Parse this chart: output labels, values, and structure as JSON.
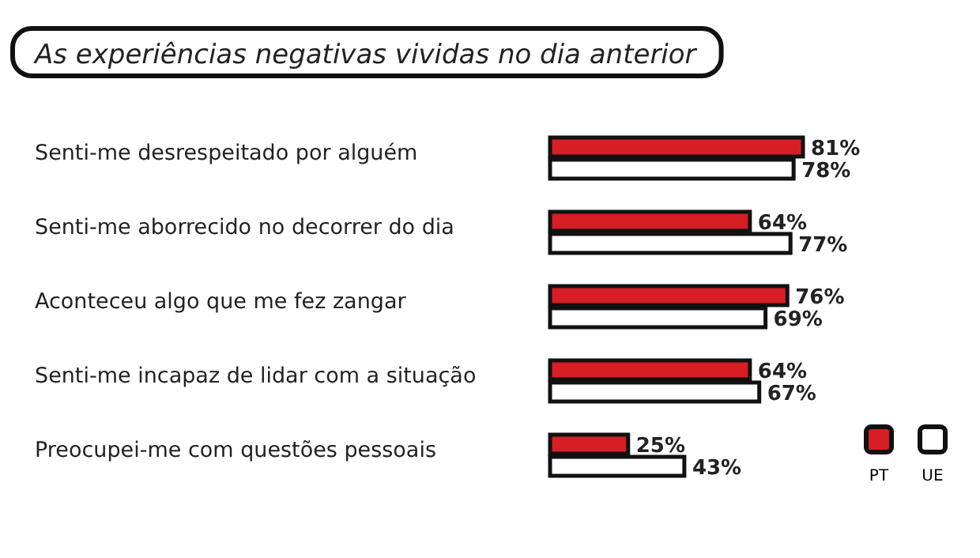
{
  "chart_data": {
    "type": "bar",
    "orientation": "horizontal",
    "title": "As experiências negativas vividas no dia anterior",
    "categories": [
      "Senti-me desrespeitado por alguém",
      "Senti-me aborrecido no decorrer do dia",
      "Aconteceu algo que me fez zangar",
      "Senti-me incapaz de lidar com a situação",
      "Preocupei-me com questões pessoais"
    ],
    "series": [
      {
        "name": "PT",
        "color": "#d81e25",
        "values": [
          81,
          64,
          76,
          64,
          25
        ],
        "value_labels": [
          "81%",
          "64%",
          "76%",
          "64%",
          "25%"
        ]
      },
      {
        "name": "UE",
        "color": "#ffffff",
        "values": [
          78,
          77,
          69,
          67,
          43
        ],
        "value_labels": [
          "78%",
          "77%",
          "69%",
          "67%",
          "43%"
        ]
      }
    ],
    "legend": "bottom right"
  }
}
